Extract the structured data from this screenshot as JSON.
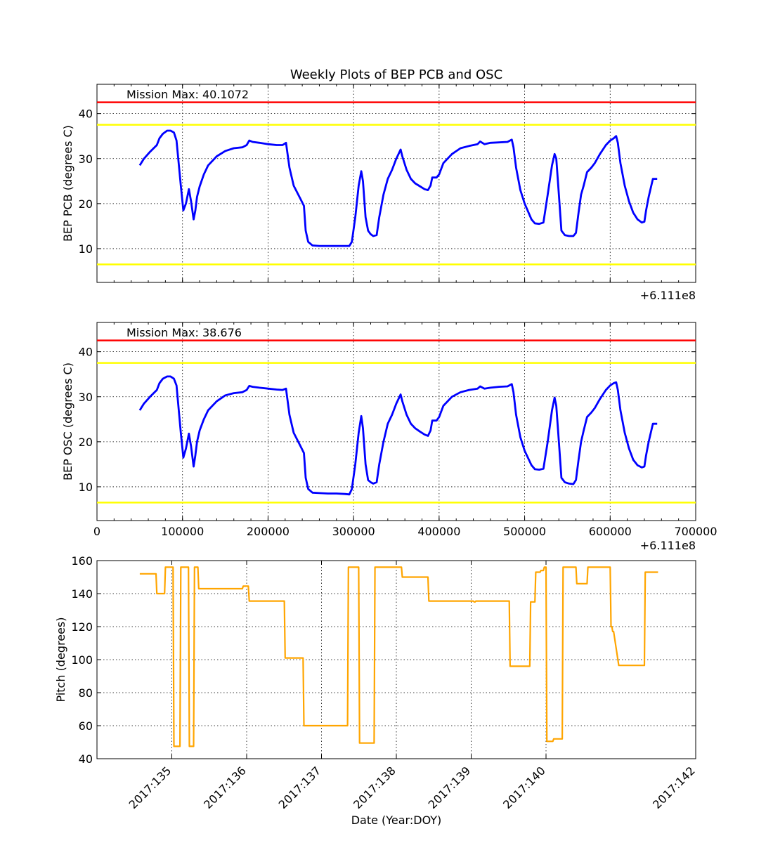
{
  "figure": {
    "title": "Weekly Plots of BEP PCB and OSC",
    "xlabel": "Date (Year:DOY)"
  },
  "chart_data": [
    {
      "type": "line",
      "id": "pcb",
      "ylabel": "BEP PCB (degrees C)",
      "annotation": "Mission Max: 40.1072",
      "offset_label": "+6.111e8",
      "xlim": [
        0,
        700000
      ],
      "ylim": [
        2.5,
        46.5
      ],
      "xticks": [
        100000,
        200000,
        300000,
        400000,
        500000,
        600000
      ],
      "xtick_labels_visible": false,
      "yticks": [
        10,
        20,
        30,
        40
      ],
      "grid": true,
      "limit_lines": [
        {
          "y": 42.5,
          "color": "#ff0000"
        },
        {
          "y": 37.5,
          "color": "#ffff00"
        },
        {
          "y": 6.5,
          "color": "#ffff00"
        }
      ],
      "series": [
        {
          "color": "#0000ff",
          "x": [
            50000,
            55000,
            62000,
            70000,
            73000,
            77000,
            82000,
            86000,
            90000,
            93000,
            98000,
            101000,
            104000,
            107500,
            110000,
            113000,
            115000,
            117000,
            120000,
            125000,
            130000,
            140000,
            150000,
            160000,
            170000,
            175000,
            178000,
            182000,
            190000,
            200000,
            210000,
            217000,
            221000,
            225000,
            230000,
            238000,
            242000,
            244000,
            247000,
            252000,
            260000,
            270000,
            280000,
            290000,
            295000,
            298000,
            302000,
            306000,
            309000,
            311000,
            314000,
            317000,
            320000,
            323000,
            327000,
            330000,
            335000,
            340000,
            345000,
            350000,
            355000,
            357000,
            362000,
            367000,
            372000,
            378000,
            383000,
            387000,
            390000,
            392000,
            397000,
            400000,
            405000,
            415000,
            425000,
            435000,
            445000,
            448000,
            453000,
            460000,
            470000,
            480000,
            485000,
            487000,
            490000,
            495000,
            500000,
            508000,
            512000,
            517000,
            522000,
            527000,
            532000,
            535000,
            537000,
            540000,
            543000,
            547000,
            552000,
            557000,
            560000,
            563000,
            566000,
            569000,
            573000,
            578000,
            582000,
            588000,
            595000,
            600000,
            604000,
            607000,
            609000,
            612000,
            617000,
            622000,
            627000,
            632000,
            637000,
            640000,
            642000,
            645000,
            650000,
            655000
          ],
          "y": [
            28.5,
            30.0,
            31.5,
            33.0,
            34.5,
            35.5,
            36.2,
            36.2,
            35.8,
            34.0,
            24.0,
            18.5,
            20.0,
            23.2,
            20.5,
            16.5,
            18.5,
            21.5,
            23.8,
            26.5,
            28.5,
            30.5,
            31.7,
            32.3,
            32.5,
            33.0,
            34.0,
            33.7,
            33.5,
            33.2,
            33.0,
            33.0,
            33.5,
            28.0,
            24.0,
            21.0,
            19.5,
            14.0,
            11.5,
            10.7,
            10.6,
            10.6,
            10.6,
            10.6,
            10.6,
            11.5,
            17.0,
            24.0,
            27.2,
            25.0,
            17.0,
            14.0,
            13.2,
            12.8,
            13.0,
            17.0,
            22.0,
            25.5,
            27.5,
            30.0,
            32.0,
            30.5,
            27.5,
            25.5,
            24.5,
            23.8,
            23.2,
            23.0,
            24.0,
            25.8,
            25.8,
            26.5,
            29.0,
            31.0,
            32.3,
            32.8,
            33.2,
            33.8,
            33.2,
            33.5,
            33.6,
            33.7,
            34.2,
            32.5,
            28.0,
            23.0,
            20.0,
            16.5,
            15.6,
            15.5,
            15.8,
            22.0,
            28.5,
            31.0,
            30.0,
            22.0,
            14.0,
            13.0,
            12.8,
            12.8,
            13.5,
            18.0,
            22.0,
            24.0,
            27.0,
            28.0,
            29.0,
            31.0,
            33.0,
            34.0,
            34.5,
            35.0,
            33.5,
            29.0,
            24.0,
            20.5,
            18.0,
            16.5,
            15.8,
            16.0,
            18.5,
            21.5,
            25.5,
            25.5
          ]
        }
      ]
    },
    {
      "type": "line",
      "id": "osc",
      "ylabel": "BEP OSC (degrees C)",
      "annotation": "Mission Max: 38.676",
      "offset_label": "+6.111e8",
      "xlim": [
        0,
        700000
      ],
      "ylim": [
        2.5,
        46.5
      ],
      "xticks": [
        0,
        100000,
        200000,
        300000,
        400000,
        500000,
        600000,
        700000
      ],
      "xtick_labels": [
        "0",
        "100000",
        "200000",
        "300000",
        "400000",
        "500000",
        "600000",
        "700000"
      ],
      "yticks": [
        10,
        20,
        30,
        40
      ],
      "grid": true,
      "limit_lines": [
        {
          "y": 42.5,
          "color": "#ff0000"
        },
        {
          "y": 37.5,
          "color": "#ffff00"
        },
        {
          "y": 6.5,
          "color": "#ffff00"
        }
      ],
      "series": [
        {
          "color": "#0000ff",
          "x": [
            50000,
            55000,
            62000,
            70000,
            73000,
            77000,
            82000,
            86000,
            90000,
            93000,
            98000,
            101000,
            104000,
            107500,
            110000,
            113000,
            115000,
            117000,
            120000,
            125000,
            130000,
            140000,
            150000,
            160000,
            170000,
            175000,
            178000,
            182000,
            190000,
            200000,
            210000,
            217000,
            221000,
            225000,
            230000,
            238000,
            242000,
            244000,
            247000,
            252000,
            260000,
            270000,
            280000,
            290000,
            295000,
            298000,
            302000,
            306000,
            309000,
            311000,
            314000,
            317000,
            320000,
            323000,
            327000,
            330000,
            335000,
            340000,
            345000,
            350000,
            355000,
            357000,
            362000,
            367000,
            372000,
            378000,
            383000,
            387000,
            390000,
            392000,
            397000,
            400000,
            405000,
            415000,
            425000,
            435000,
            445000,
            448000,
            453000,
            460000,
            470000,
            480000,
            485000,
            487000,
            490000,
            495000,
            500000,
            508000,
            512000,
            517000,
            522000,
            527000,
            532000,
            535000,
            537000,
            540000,
            543000,
            547000,
            552000,
            557000,
            560000,
            563000,
            566000,
            569000,
            573000,
            578000,
            582000,
            588000,
            595000,
            600000,
            604000,
            607000,
            609000,
            612000,
            617000,
            622000,
            627000,
            632000,
            637000,
            640000,
            642000,
            645000,
            650000,
            655000
          ],
          "y": [
            27.0,
            28.5,
            30.0,
            31.5,
            33.0,
            34.0,
            34.5,
            34.5,
            34.0,
            32.5,
            22.0,
            16.5,
            18.5,
            21.8,
            19.0,
            14.5,
            17.0,
            20.0,
            22.5,
            25.0,
            27.0,
            29.0,
            30.3,
            30.8,
            31.0,
            31.5,
            32.4,
            32.2,
            32.0,
            31.8,
            31.6,
            31.5,
            31.8,
            26.0,
            22.0,
            19.0,
            17.5,
            12.0,
            9.5,
            8.7,
            8.6,
            8.5,
            8.5,
            8.4,
            8.3,
            9.5,
            15.0,
            22.0,
            25.7,
            23.0,
            15.0,
            11.5,
            11.0,
            10.7,
            11.0,
            15.0,
            20.0,
            24.0,
            26.0,
            28.5,
            30.5,
            29.0,
            26.0,
            24.0,
            23.0,
            22.2,
            21.6,
            21.3,
            22.5,
            24.7,
            24.7,
            25.5,
            28.0,
            30.0,
            31.0,
            31.5,
            31.8,
            32.3,
            31.8,
            32.0,
            32.2,
            32.3,
            32.8,
            31.0,
            26.0,
            21.0,
            18.0,
            14.8,
            13.9,
            13.8,
            14.0,
            20.0,
            27.0,
            29.8,
            28.0,
            20.0,
            12.0,
            11.0,
            10.7,
            10.6,
            11.5,
            16.0,
            20.0,
            22.5,
            25.5,
            26.5,
            27.5,
            29.5,
            31.5,
            32.5,
            33.0,
            33.2,
            31.5,
            27.0,
            22.0,
            18.5,
            16.0,
            14.8,
            14.3,
            14.5,
            17.0,
            20.0,
            24.0,
            24.0
          ]
        }
      ]
    },
    {
      "type": "line",
      "id": "pitch",
      "ylabel": "Pitch (degrees)",
      "xlim": [
        2017.134,
        2017.142
      ],
      "ylim": [
        40,
        160
      ],
      "xticks": [
        2017.135,
        2017.136,
        2017.137,
        2017.138,
        2017.139,
        2017.14,
        2017.142
      ],
      "xtick_labels": [
        "2017:135",
        "2017:136",
        "2017:137",
        "2017:138",
        "2017:139",
        "2017:140",
        "2017:142"
      ],
      "yticks": [
        40,
        60,
        80,
        100,
        120,
        140,
        160
      ],
      "grid": true,
      "series": [
        {
          "color": "#ffa500",
          "px": [
            50000,
            69000,
            70000,
            79000,
            80000,
            89000,
            90000,
            97000,
            98000,
            99000,
            100000,
            107000,
            108000,
            113000,
            114000,
            118000,
            119000,
            170000,
            171000,
            177000,
            178000,
            219000,
            220000,
            241000,
            242000,
            293000,
            294000,
            306000,
            307000,
            324000,
            325000,
            352000,
            353000,
            356000,
            357000,
            387000,
            388000,
            440000,
            441000,
            442000,
            443000,
            482000,
            483000,
            506000,
            507000,
            512000,
            513000,
            518000,
            519000,
            522000,
            523000,
            525000,
            526000,
            533000,
            534000,
            544000,
            545000,
            560000,
            561000,
            573000,
            574000,
            580000,
            581000,
            600000,
            601000,
            602000,
            603000,
            604000,
            610000,
            611000,
            612000,
            640000,
            641000,
            656000
          ],
          "y": [
            152,
            152,
            140,
            140,
            156,
            156,
            47.5,
            47.5,
            156,
            156,
            156,
            156,
            47.5,
            47.5,
            156,
            156,
            143,
            143,
            144.5,
            144.5,
            135.5,
            135.5,
            101,
            101,
            60,
            60,
            156,
            156,
            49.5,
            49.5,
            156,
            156,
            156,
            156,
            150,
            150,
            135.5,
            135.5,
            135,
            135,
            135.5,
            135.5,
            96,
            96,
            135,
            135,
            153,
            153,
            154,
            154,
            156,
            156,
            50.5,
            50.5,
            52,
            52,
            156,
            156,
            146,
            146,
            156,
            156,
            156,
            156,
            120,
            120,
            117,
            117,
            96.5,
            96.5,
            96.5,
            96.5,
            153,
            153
          ]
        }
      ]
    }
  ]
}
